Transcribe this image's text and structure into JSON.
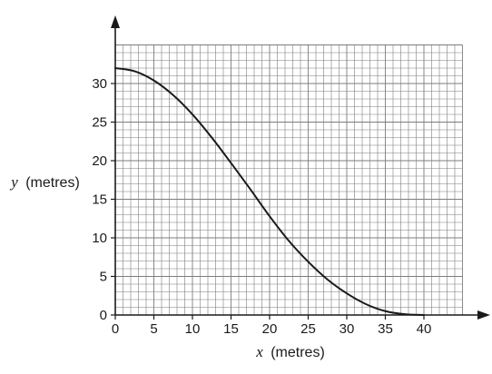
{
  "chart_data": {
    "type": "line",
    "xlabel_var": "x",
    "xlabel_unit": "(metres)",
    "ylabel_var": "y",
    "ylabel_unit": "(metres)",
    "xlim": [
      0,
      45
    ],
    "ylim": [
      0,
      35
    ],
    "x_ticks": [
      0,
      5,
      10,
      15,
      20,
      25,
      30,
      35,
      40
    ],
    "y_ticks": [
      0,
      5,
      10,
      15,
      20,
      25,
      30
    ],
    "grid": true,
    "x_minor_step": 1,
    "y_minor_step": 1,
    "series": [
      {
        "x": [
          0,
          2.5,
          5,
          7.5,
          10,
          12.5,
          15,
          17.5,
          20,
          22.5,
          25,
          27.5,
          30,
          32.5,
          35,
          37.5,
          40
        ],
        "y": [
          32,
          31.6,
          30.4,
          28.5,
          26,
          23.0,
          19.7,
          16.3,
          12.8,
          9.6,
          6.9,
          4.6,
          2.8,
          1.4,
          0.5,
          0.1,
          0
        ]
      }
    ]
  },
  "colors": {
    "grid": "#7d7d7d",
    "axis": "#1a1a1a",
    "curve": "#1a1a1a"
  }
}
